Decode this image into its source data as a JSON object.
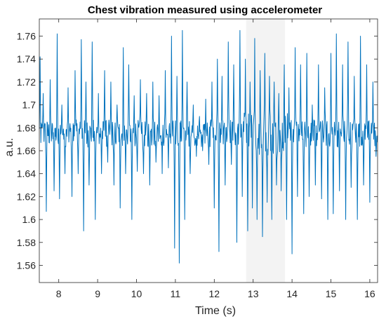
{
  "chart_data": {
    "type": "line",
    "title": "Chest vibration measured using accelerometer",
    "xlabel": "Time (s)",
    "ylabel": "a.u.",
    "xlim": [
      7.5,
      16.2
    ],
    "ylim": [
      1.545,
      1.775
    ],
    "xticks": [
      8,
      9,
      10,
      11,
      12,
      13,
      14,
      15,
      16
    ],
    "yticks": [
      1.56,
      1.58,
      1.6,
      1.62,
      1.64,
      1.66,
      1.68,
      1.7,
      1.72,
      1.74,
      1.76
    ],
    "highlight_region": [
      12.82,
      13.82
    ],
    "grid": false,
    "series": [
      {
        "color": "#0072BD",
        "sample_rate_hz": 100,
        "baseline": 1.675,
        "noise_amplitude": 0.012,
        "x": [
          7.52,
          7.6,
          7.68,
          7.78,
          7.88,
          7.96,
          8.02,
          8.08,
          8.16,
          8.24,
          8.34,
          8.42,
          8.5,
          8.58,
          8.64,
          8.7,
          8.78,
          8.86,
          8.94,
          9.02,
          9.1,
          9.18,
          9.26,
          9.34,
          9.42,
          9.5,
          9.58,
          9.66,
          9.72,
          9.8,
          9.88,
          9.94,
          10.02,
          10.1,
          10.18,
          10.26,
          10.34,
          10.42,
          10.5,
          10.58,
          10.66,
          10.74,
          10.82,
          10.9,
          10.98,
          11.04,
          11.1,
          11.18,
          11.24,
          11.3,
          11.38,
          11.46,
          11.54,
          11.62,
          11.7,
          11.78,
          11.86,
          11.94,
          12.0,
          12.08,
          12.12,
          12.2,
          12.28,
          12.36,
          12.44,
          12.5,
          12.58,
          12.66,
          12.72,
          12.8,
          12.86,
          12.92,
          12.98,
          13.04,
          13.1,
          13.18,
          13.24,
          13.3,
          13.36,
          13.42,
          13.48,
          13.54,
          13.6,
          13.66,
          13.72,
          13.8,
          13.86,
          13.92,
          14.0,
          14.08,
          14.14,
          14.22,
          14.3,
          14.38,
          14.44,
          14.52,
          14.6,
          14.68,
          14.76,
          14.84,
          14.92,
          15.0,
          15.06,
          15.14,
          15.22,
          15.3,
          15.38,
          15.44,
          15.52,
          15.6,
          15.68,
          15.76,
          15.84,
          15.92,
          16.0,
          16.08,
          16.16
        ],
        "y": [
          1.742,
          1.71,
          1.607,
          1.722,
          1.625,
          1.762,
          1.618,
          1.7,
          1.64,
          1.715,
          1.62,
          1.73,
          1.64,
          1.757,
          1.59,
          1.72,
          1.63,
          1.755,
          1.6,
          1.71,
          1.64,
          1.73,
          1.65,
          1.72,
          1.63,
          1.7,
          1.61,
          1.75,
          1.64,
          1.735,
          1.6,
          1.708,
          1.642,
          1.722,
          1.64,
          1.71,
          1.63,
          1.72,
          1.65,
          1.708,
          1.64,
          1.73,
          1.645,
          1.76,
          1.575,
          1.725,
          1.562,
          1.765,
          1.6,
          1.72,
          1.64,
          1.7,
          1.655,
          1.69,
          1.66,
          1.705,
          1.648,
          1.72,
          1.61,
          1.74,
          1.572,
          1.725,
          1.63,
          1.755,
          1.648,
          1.735,
          1.58,
          1.765,
          1.62,
          1.74,
          1.59,
          1.72,
          1.61,
          1.758,
          1.6,
          1.73,
          1.585,
          1.745,
          1.615,
          1.725,
          1.6,
          1.72,
          1.63,
          1.71,
          1.625,
          1.735,
          1.6,
          1.715,
          1.57,
          1.75,
          1.62,
          1.735,
          1.605,
          1.745,
          1.62,
          1.7,
          1.63,
          1.735,
          1.618,
          1.715,
          1.6,
          1.745,
          1.605,
          1.762,
          1.625,
          1.735,
          1.6,
          1.755,
          1.628,
          1.725,
          1.6,
          1.76,
          1.63,
          1.735,
          1.615,
          1.72,
          1.655
        ]
      }
    ]
  }
}
